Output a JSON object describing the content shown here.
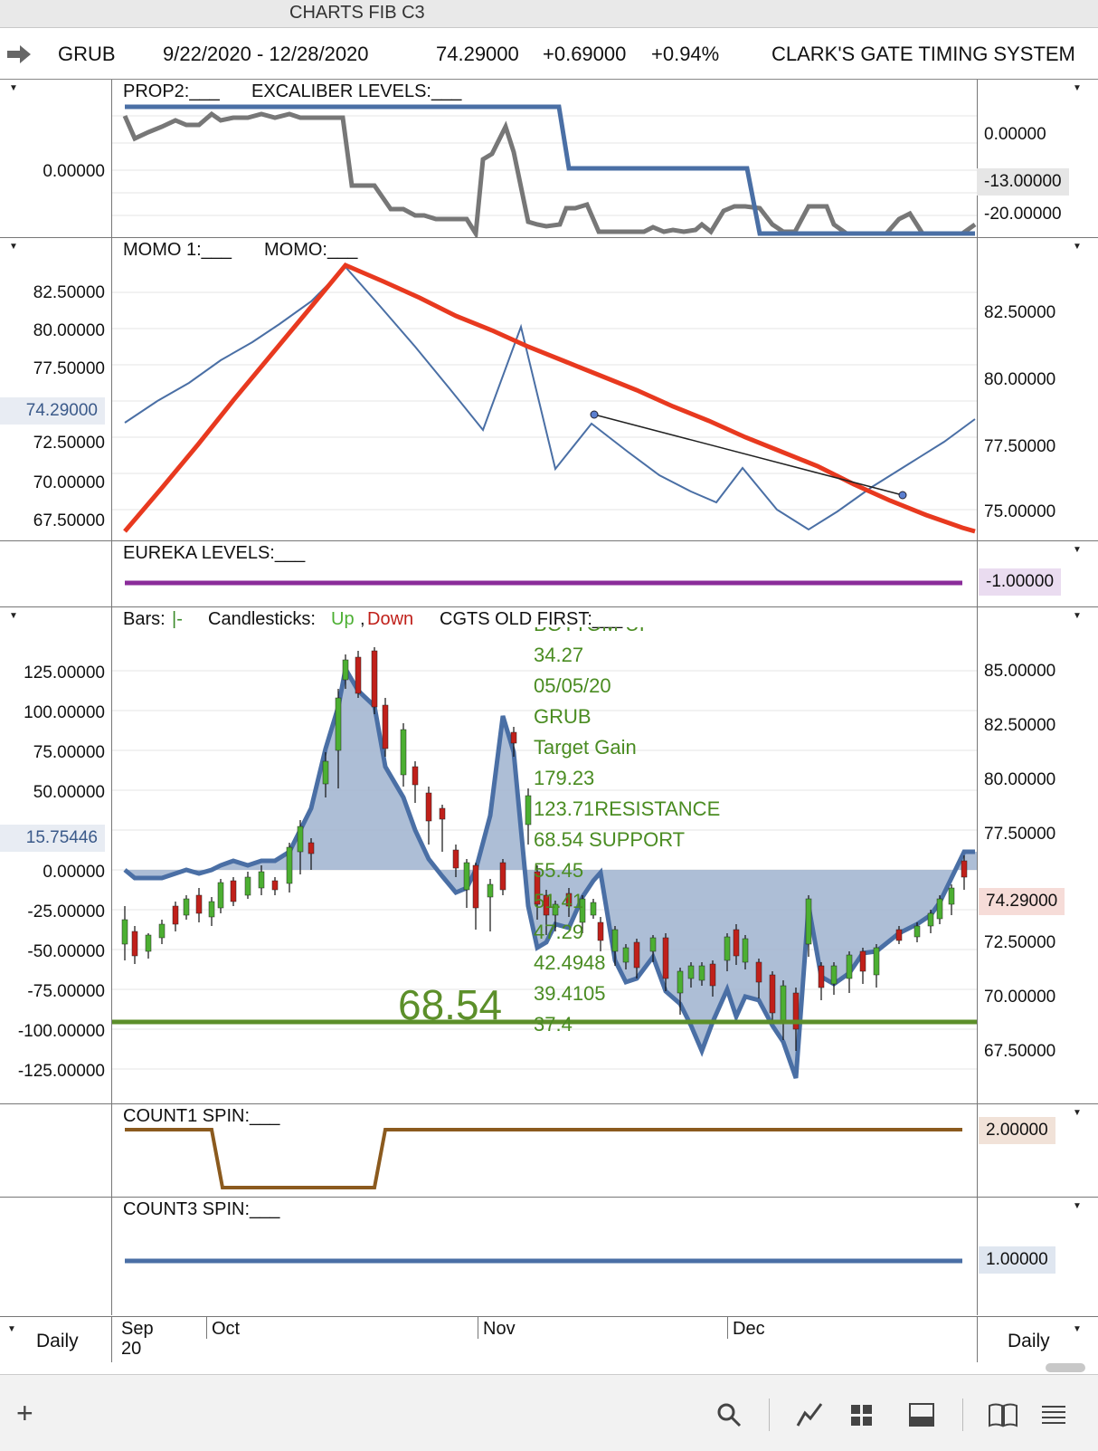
{
  "window": {
    "title": "CHARTS FIB C3"
  },
  "header": {
    "symbol": "GRUB",
    "range": "9/22/2020 - 12/28/2020",
    "price": "74.29000",
    "change": "+0.69000",
    "pct": "+0.94%",
    "system": "CLARK'S GATE TIMING SYSTEM"
  },
  "prop_pane": {
    "label1": "PROP2:___",
    "label2": "EXCALIBER LEVELS:___",
    "left_ticks": [
      "0.00000"
    ],
    "right_ticks": [
      "0.00000",
      "-13.00000",
      "-20.00000"
    ],
    "series": [
      {
        "name": "PROP2",
        "color": "#777777"
      },
      {
        "name": "EXCALIBER LEVELS",
        "color": "#4a6fa5"
      }
    ]
  },
  "momo_pane": {
    "label1": "MOMO 1:___",
    "label2": "MOMO:___",
    "left_ticks": [
      "82.50000",
      "80.00000",
      "77.50000",
      "74.29000",
      "72.50000",
      "70.00000",
      "67.50000"
    ],
    "right_ticks": [
      "82.50000",
      "80.00000",
      "77.50000",
      "75.00000"
    ],
    "colors": {
      "momo1": "#4a6fa5",
      "momo": "#e8391f"
    }
  },
  "eureka_pane": {
    "label": "EUREKA LEVELS:___",
    "right_value": "-1.00000",
    "color": "#8b2c9a"
  },
  "main_pane": {
    "label_bars": "Bars:",
    "bars_sym": "|-",
    "label_candles": "Candlesticks:",
    "up": "Up",
    "comma": ",",
    "down": "Down",
    "label_cgts": "CGTS OLD FIRST:___",
    "left_ticks": [
      "125.00000",
      "100.00000",
      "75.00000",
      "50.00000",
      "15.75446",
      "0.00000",
      "-25.00000",
      "-50.00000",
      "-75.00000",
      "-100.00000",
      "-125.00000"
    ],
    "right_ticks": [
      "85.00000",
      "82.50000",
      "80.00000",
      "77.50000",
      "74.29000",
      "72.50000",
      "70.00000",
      "67.50000"
    ],
    "annotations": [
      "BOTTOM-UP",
      "34.27",
      "05/05/20",
      "GRUB",
      "Target Gain",
      "179.23",
      "123.71RESISTANCE",
      "68.54 SUPPORT",
      "55.45",
      "51.41",
      "47.29",
      "42.4948",
      "39.4105",
      "37.4"
    ],
    "support_big": "68.54",
    "colors": {
      "up": "#4caf32",
      "down": "#c0201a",
      "cgts": "#4a6fa5",
      "support": "#5c8f2a"
    }
  },
  "count1_pane": {
    "label": "COUNT1 SPIN:___",
    "right_value": "2.00000",
    "color": "#8b5a1e"
  },
  "count3_pane": {
    "label": "COUNT3 SPIN:___",
    "right_value": "1.00000",
    "color": "#4a6fa5"
  },
  "footer": {
    "left": "Daily",
    "right": "Daily",
    "months": [
      "Sep",
      "20",
      "Oct",
      "Nov",
      "Dec"
    ]
  },
  "chart_data": [
    {
      "type": "line",
      "title": "PROP2 / EXCALIBER LEVELS",
      "series": [
        {
          "name": "PROP2",
          "values": [
            -3,
            -6,
            -4,
            -2,
            -4,
            -4,
            -1,
            -2,
            -2,
            -1,
            -2,
            -1,
            -2,
            -2,
            -2,
            -2,
            -2,
            -15,
            -15,
            -15,
            -18,
            -18,
            -19,
            -20,
            -20,
            -20,
            -21,
            -10,
            -8,
            -4,
            -19,
            -20,
            -20,
            -18,
            -18,
            -21,
            -21,
            -21,
            -21,
            -20,
            -21,
            -20,
            -21,
            -18,
            -18,
            -20,
            -21,
            -21,
            -21,
            -21,
            -21,
            -15,
            -18,
            -18,
            -18,
            -17,
            -17,
            -16,
            -16,
            -16,
            -16,
            -16
          ]
        },
        {
          "name": "EXCALIBER LEVELS",
          "values": [
            0,
            0,
            0,
            0,
            0,
            0,
            0,
            0,
            0,
            0,
            0,
            0,
            0,
            0,
            0,
            0,
            0,
            0,
            0,
            0,
            0,
            0,
            0,
            0,
            0,
            0,
            0,
            0,
            0,
            0,
            -13,
            -13,
            -13,
            -13,
            -13,
            -13,
            -13,
            -13,
            -13,
            -13,
            -13,
            -13,
            -13,
            -20,
            -20,
            -20,
            -20,
            -20,
            -20,
            -20,
            -20,
            -20,
            -20,
            -20,
            -20,
            -20,
            -20,
            -20,
            -20,
            -20,
            -20,
            -20
          ]
        }
      ]
    },
    {
      "type": "line",
      "title": "MOMO 1 / MOMO",
      "series": [
        {
          "name": "MOMO 1",
          "values": [
            74,
            75.5,
            77,
            78.5,
            80.2,
            81.8,
            83.5,
            84.8,
            82.1,
            79.4,
            76.8,
            74.2,
            79.8,
            72.6,
            75.2,
            75.4,
            72.3,
            73.8,
            71.2,
            69.1,
            70.6,
            71.9,
            70.3,
            69.5,
            68.2,
            69.4,
            70.8,
            72.5,
            74.3
          ]
        },
        {
          "name": "MOMO",
          "values": [
            67.1,
            70.5,
            73.9,
            77.2,
            80.3,
            83.1,
            84.6,
            83.9,
            83.2,
            82.5,
            81.8,
            81.1,
            80.4,
            79.7,
            79,
            78.3,
            77.6,
            76.9,
            76.2,
            75.5,
            74.8,
            74.1,
            73.4,
            72.6,
            71.8,
            71,
            70.2,
            69.4,
            68.6
          ]
        }
      ]
    },
    {
      "type": "line",
      "title": "EUREKA LEVELS",
      "series": [
        {
          "name": "EUREKA LEVELS",
          "values": [
            -1,
            -1
          ]
        }
      ]
    },
    {
      "type": "area",
      "title": "CGTS OLD FIRST",
      "series": [
        {
          "name": "CGTS OLD FIRST",
          "values": [
            0,
            -5,
            -5,
            -5,
            -2,
            2,
            -2,
            0,
            2,
            5,
            2,
            7,
            2,
            20,
            40,
            95,
            115,
            128,
            118,
            110,
            80,
            60,
            35,
            15,
            -10,
            -25,
            -20,
            -10,
            -5,
            40,
            95,
            60,
            -90,
            -85,
            -75,
            -80,
            -60,
            -50,
            -45,
            -20,
            -55,
            -100,
            -105,
            -100,
            -75,
            -95,
            -115,
            -120,
            -100,
            -75,
            -90,
            -100,
            -80,
            -60,
            -95,
            -100,
            -120,
            -140,
            -70,
            -40,
            -90,
            -100
          ]
        }
      ]
    },
    {
      "type": "line",
      "title": "COUNT1 SPIN",
      "series": [
        {
          "name": "COUNT1 SPIN",
          "values": [
            2,
            2,
            2,
            2,
            0,
            0,
            0,
            0,
            0,
            0,
            2,
            2,
            2,
            2,
            2,
            2,
            2,
            2,
            2,
            2
          ]
        }
      ]
    },
    {
      "type": "line",
      "title": "COUNT3 SPIN",
      "series": [
        {
          "name": "COUNT3 SPIN",
          "values": [
            1,
            1
          ]
        }
      ]
    }
  ]
}
